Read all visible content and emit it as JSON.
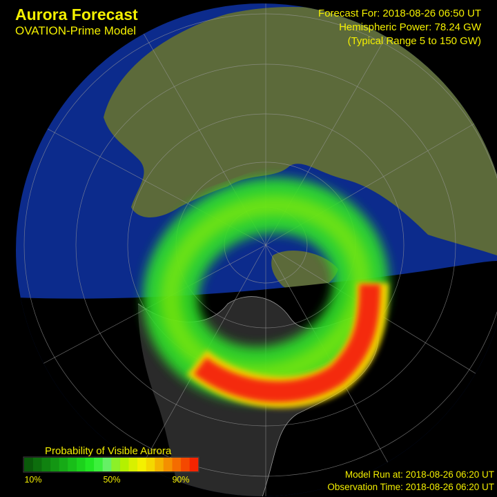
{
  "header": {
    "title": "Aurora Forecast",
    "subtitle": "OVATION-Prime Model"
  },
  "forecast": {
    "forecast_for": "Forecast For: 2018-08-26 06:50 UT",
    "power": "Hemispheric Power: 78.24 GW",
    "range": "(Typical Range 5 to 150 GW)"
  },
  "legend": {
    "title": "Probability of Visible Aurora",
    "ticks": [
      "10%",
      "50%",
      "90%"
    ]
  },
  "footer": {
    "model_run": "Model Run at: 2018-08-26 06:20 UT",
    "observation": "Observation Time: 2018-08-26 06:20 UT"
  }
}
